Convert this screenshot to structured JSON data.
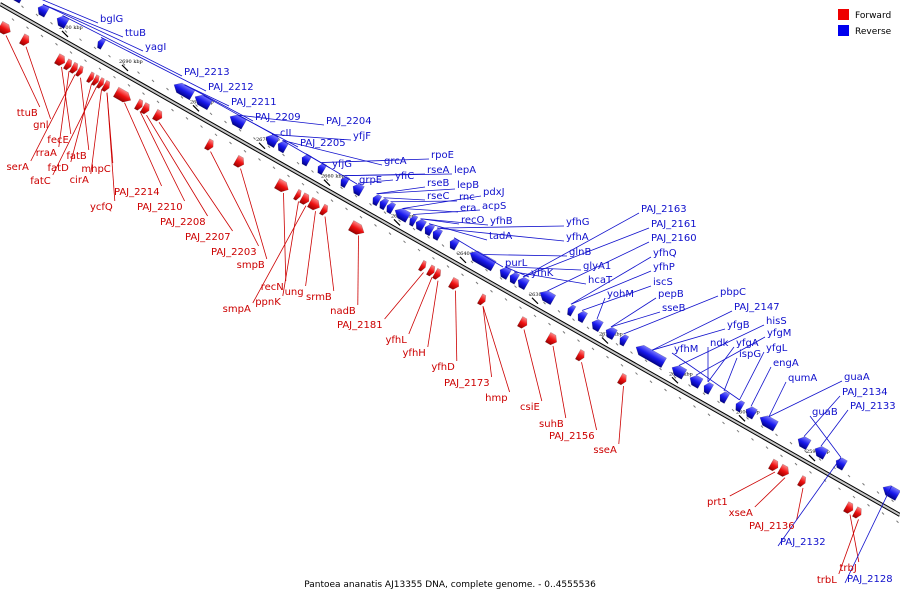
{
  "title": "Pantoea ananatis AJ13355 DNA, complete genome. - 0..4555536",
  "legend": [
    {
      "label": "Forward",
      "color": "#ee0000"
    },
    {
      "label": "Reverse",
      "color": "#0000ee"
    }
  ],
  "ticks": [
    "2700 kbp",
    "2690 kbp",
    "2680 kbp",
    "2670 kbp",
    "2660 kbp",
    "2650 kbp",
    "2640 kbp",
    "2630 kbp",
    "2620 kbp",
    "2610 kbp",
    "2600 kbp",
    "2590 kbp"
  ],
  "forward_genes": [
    "ttuB",
    "gnl",
    "fecE",
    "rraA",
    "serA",
    "fatB",
    "fatD",
    "fatC",
    "cirA",
    "mhpC",
    "ycfQ",
    "PAJ_2214",
    "PAJ_2210",
    "PAJ_2208",
    "PAJ_2207",
    "PAJ_2203",
    "smpB",
    "recN",
    "ppnK",
    "smpA",
    "ung",
    "srmB",
    "nadB",
    "PAJ_2181",
    "yfhL",
    "yfhH",
    "yfhD",
    "PAJ_2173",
    "hmp",
    "csiE",
    "suhB",
    "PAJ_2156",
    "sseA",
    "prt1",
    "xseA",
    "PAJ_2136",
    "trbJ",
    "trbL"
  ],
  "reverse_genes": [
    "bglG",
    "ttuB",
    "yagI",
    "PAJ_2213",
    "PAJ_2212",
    "PAJ_2211",
    "PAJ_2209",
    "cII",
    "PAJ_2204",
    "PAJ_2205",
    "yfjF",
    "yfjG",
    "grcA",
    "grpE",
    "rpoE",
    "rseA",
    "lepA",
    "yfiC",
    "rseB",
    "lepB",
    "rseC",
    "rnc",
    "pdxJ",
    "era",
    "acpS",
    "recO",
    "yfhB",
    "tadA",
    "yfhG",
    "yfhA",
    "purL",
    "glnB",
    "yfhK",
    "glyA1",
    "hcaT",
    "PAJ_2163",
    "PAJ_2161",
    "PAJ_2160",
    "yfhQ",
    "yfhP",
    "iscS",
    "yohM",
    "pepB",
    "sseB",
    "pbpC",
    "PAJ_2147",
    "yfgB",
    "hisS",
    "yfgM",
    "ndk",
    "yfgA",
    "ispG",
    "yfgL",
    "yfhM",
    "engA",
    "qumA",
    "guaA",
    "PAJ_2134",
    "PAJ_2133",
    "guaB",
    "PAJ_2132",
    "PAJ_2128"
  ]
}
